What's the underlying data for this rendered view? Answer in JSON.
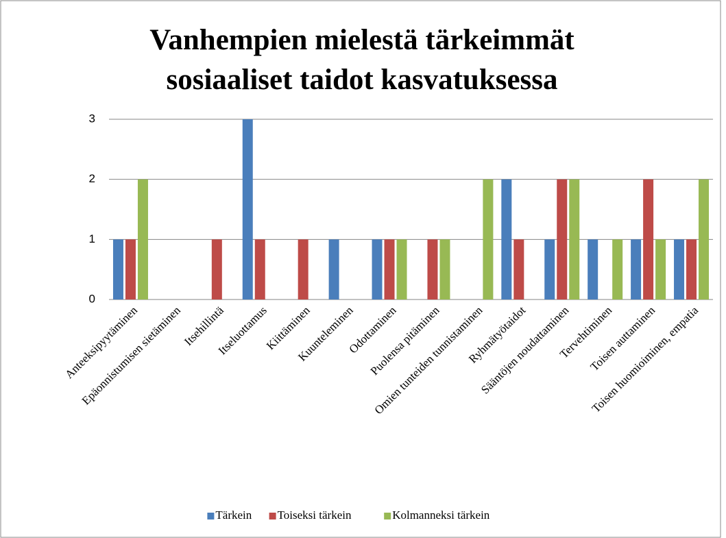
{
  "chart_data": {
    "type": "bar",
    "title": [
      "Vanhempien mielestä tärkeimmät",
      "sosiaaliset taidot kasvatuksessa"
    ],
    "categories": [
      "Anteeksipyytäminen",
      "Epäonnistumisen sietäminen",
      "Itsehillintä",
      "Itseluottamus",
      "Kiittäminen",
      "Kuunteleminen",
      "Odottaminen",
      "Puolensa pitäminen",
      "Omien tunteiden tunnistaminen",
      "Ryhmätyötaidot",
      "Sääntöjen noudattaminen",
      "Tervehtiminen",
      "Toisen auttaminen",
      "Toisen huomioiminen, empatia"
    ],
    "series": [
      {
        "name": "Tärkein",
        "color": "#4a7ebb",
        "values": [
          1,
          0,
          0,
          3,
          0,
          1,
          1,
          0,
          0,
          2,
          1,
          1,
          1,
          1
        ]
      },
      {
        "name": "Toiseksi tärkein",
        "color": "#be4b48",
        "values": [
          1,
          0,
          1,
          1,
          1,
          0,
          1,
          1,
          0,
          1,
          2,
          0,
          2,
          1
        ]
      },
      {
        "name": "Kolmanneksi tärkein",
        "color": "#98b954",
        "values": [
          2,
          0,
          0,
          0,
          0,
          0,
          1,
          1,
          2,
          0,
          2,
          1,
          1,
          2
        ]
      }
    ],
    "ylim": [
      0,
      3
    ],
    "yticks": [
      0,
      1,
      2,
      3
    ],
    "grid": true,
    "legend": "bottom"
  }
}
